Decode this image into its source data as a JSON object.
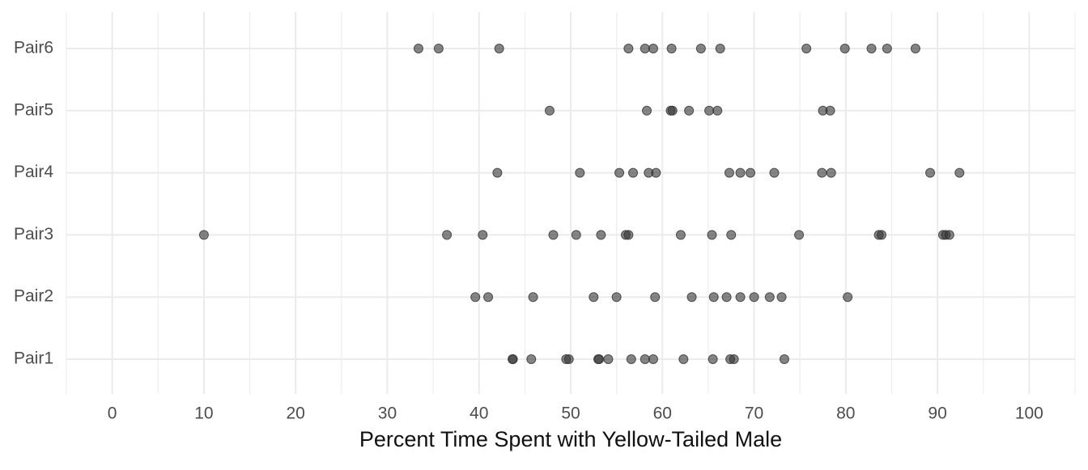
{
  "chart_data": {
    "type": "strip",
    "x_label": "Percent Time Spent with Yellow-Tailed Male",
    "categories": [
      "Pair1",
      "Pair2",
      "Pair3",
      "Pair4",
      "Pair5",
      "Pair6"
    ],
    "values": [
      [
        43.65,
        43.7,
        45.7,
        49.5,
        49.8,
        53.0,
        53.1,
        54.1,
        56.6,
        58.1,
        59.0,
        62.3,
        65.5,
        67.4,
        67.8,
        73.3
      ],
      [
        39.6,
        41.0,
        45.9,
        52.5,
        55.0,
        59.2,
        63.2,
        65.6,
        67.0,
        68.5,
        70.0,
        71.7,
        73.0,
        80.2
      ],
      [
        10.0,
        36.5,
        40.4,
        48.1,
        50.6,
        53.3,
        56.0,
        56.3,
        62.0,
        65.4,
        67.5,
        74.9,
        83.6,
        83.9,
        90.6,
        90.9,
        91.3
      ],
      [
        42.0,
        51.0,
        55.3,
        56.8,
        58.5,
        59.3,
        67.3,
        68.5,
        69.6,
        72.2,
        77.4,
        78.4,
        89.2,
        92.4
      ],
      [
        47.7,
        58.3,
        60.9,
        61.1,
        62.9,
        65.1,
        66.0,
        77.5,
        78.3
      ],
      [
        33.4,
        35.6,
        42.2,
        56.3,
        58.1,
        59.0,
        61.0,
        64.2,
        66.3,
        75.7,
        79.9,
        82.8,
        84.5,
        87.6
      ]
    ],
    "color": "#333333",
    "xlim": [
      -5,
      105
    ],
    "xticks": [
      0,
      10,
      20,
      30,
      40,
      50,
      60,
      70,
      80,
      90,
      100
    ],
    "grid": true,
    "minor_grid": true
  }
}
